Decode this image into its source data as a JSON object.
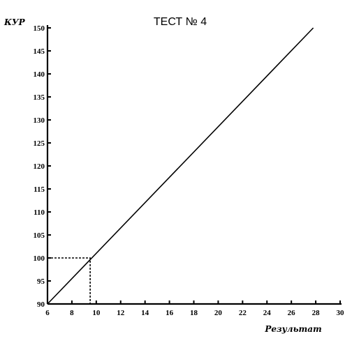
{
  "chart_data": {
    "type": "line",
    "title": "ТЕСТ № 4",
    "xlabel": "Результат",
    "ylabel": "КУР",
    "xlim": [
      6,
      30
    ],
    "ylim": [
      90,
      150
    ],
    "x_ticks": [
      6,
      8,
      10,
      12,
      14,
      16,
      18,
      20,
      22,
      24,
      26,
      28,
      30
    ],
    "y_ticks": [
      90,
      95,
      100,
      105,
      110,
      115,
      120,
      125,
      130,
      135,
      140,
      145,
      150
    ],
    "grid": false,
    "series": [
      {
        "x": [
          6,
          27.8
        ],
        "y": [
          90,
          150
        ]
      }
    ],
    "annotations": [
      {
        "type": "dashed-guide",
        "x": 9.5,
        "y": 100
      }
    ]
  }
}
